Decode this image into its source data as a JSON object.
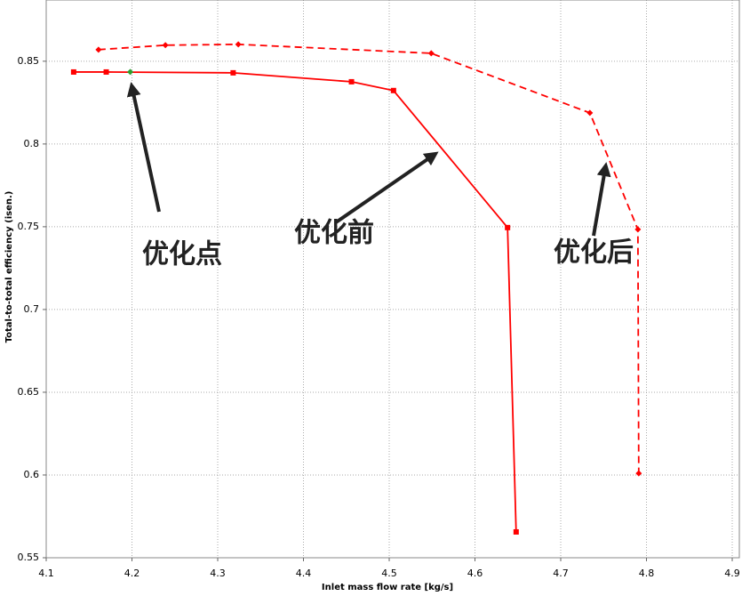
{
  "chart_data": {
    "type": "line",
    "x_label": "Inlet mass flow rate [kg/s]",
    "y_label": "Total-to-total efficiency (isen.)",
    "xlim": [
      4.1,
      4.9
    ],
    "xticks": [
      4.1,
      4.2,
      4.3,
      4.4,
      4.5,
      4.6,
      4.7,
      4.8,
      4.9
    ],
    "ylim": [
      0.55,
      0.887
    ],
    "yticks": [
      0.55,
      0.6,
      0.65,
      0.7,
      0.75,
      0.8,
      0.85
    ],
    "grid": true,
    "series": [
      {
        "color": "#ff0000",
        "style": "solid",
        "marker": "square",
        "x": [
          4.132,
          4.17,
          4.318,
          4.456,
          4.505,
          4.638,
          4.648
        ],
        "values": [
          0.8435,
          0.8435,
          0.843,
          0.8376,
          0.8323,
          0.7495,
          0.5656
        ]
      },
      {
        "color": "#ff0000",
        "style": "dashed",
        "marker": "diamond",
        "x": [
          4.161,
          4.239,
          4.324,
          4.549,
          4.734,
          4.79,
          4.791
        ],
        "values": [
          0.857,
          0.8597,
          0.8602,
          0.8548,
          0.8188,
          0.7484,
          0.601
        ]
      },
      {
        "color": "#2e9e2e",
        "style": "none",
        "marker": "diamond",
        "x": [
          4.198
        ],
        "values": [
          0.8435
        ]
      }
    ],
    "annotations": [
      "优化点",
      "优化前",
      "优化后"
    ]
  }
}
